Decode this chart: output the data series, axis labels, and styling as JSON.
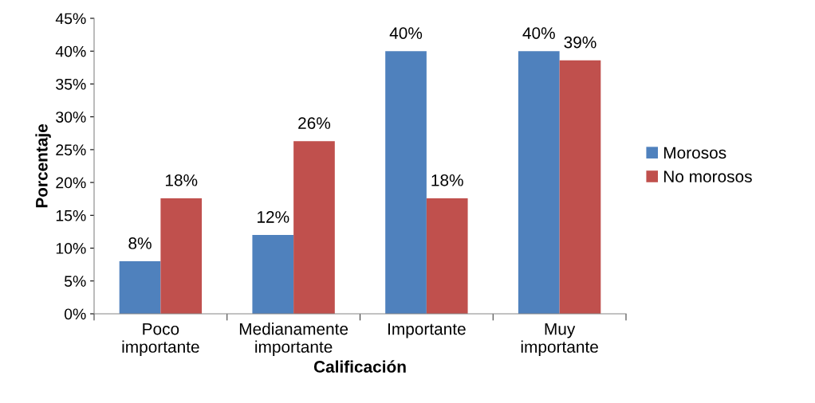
{
  "chart_data": {
    "type": "bar",
    "xlabel": "Calificación",
    "ylabel": "Porcentaje",
    "categories": [
      "Poco\nimportante",
      "Medianamente\nimportante",
      "Importante",
      "Muy\nimportante"
    ],
    "series": [
      {
        "name": "Morosos",
        "color": "#4f81bd",
        "values": [
          8,
          12,
          40,
          40
        ],
        "value_labels": [
          "8%",
          "12%",
          "40%",
          "40%"
        ]
      },
      {
        "name": "No morosos",
        "color": "#c0504d",
        "values": [
          17.6,
          26.3,
          17.6,
          38.6
        ],
        "value_labels": [
          "18%",
          "26%",
          "18%",
          "39%"
        ]
      }
    ],
    "ylim": [
      0,
      45
    ],
    "yticks": [
      {
        "value": 0,
        "label": "0%"
      },
      {
        "value": 5,
        "label": "5%"
      },
      {
        "value": 10,
        "label": "10%"
      },
      {
        "value": 15,
        "label": "15%"
      },
      {
        "value": 20,
        "label": "20%"
      },
      {
        "value": 25,
        "label": "25%"
      },
      {
        "value": 30,
        "label": "30%"
      },
      {
        "value": 35,
        "label": "35%"
      },
      {
        "value": 40,
        "label": "40%"
      },
      {
        "value": 45,
        "label": "45%"
      }
    ],
    "grid": false,
    "legend": "right"
  }
}
